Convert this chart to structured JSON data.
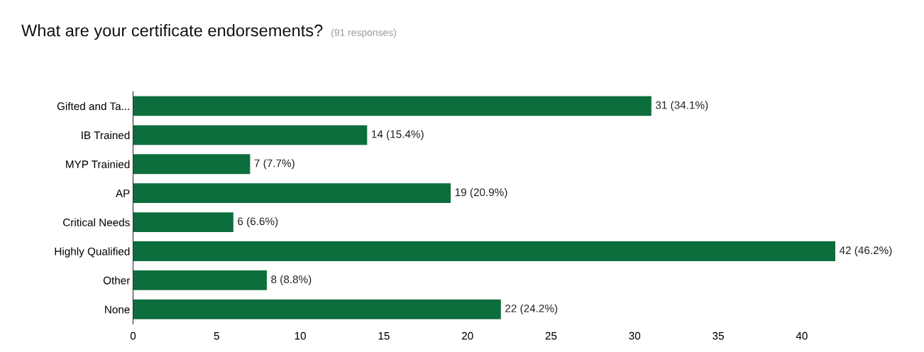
{
  "chart_data": {
    "type": "bar",
    "orientation": "horizontal",
    "title": "What are your certificate endorsements?",
    "subtitle": "(91 responses)",
    "categories": [
      "Gifted and Ta...",
      "IB Trained",
      "MYP Trainied",
      "AP",
      "Critical Needs",
      "Highly Qualified",
      "Other",
      "None"
    ],
    "values": [
      31,
      14,
      7,
      19,
      6,
      42,
      8,
      22
    ],
    "value_labels": [
      "31 (34.1%)",
      "14 (15.4%)",
      "7 (7.7%)",
      "19 (20.9%)",
      "6 (6.6%)",
      "42 (46.2%)",
      "8 (8.8%)",
      "22 (24.2%)"
    ],
    "color": "#0d6e3d",
    "xlim": [
      0,
      42
    ],
    "xticks": [
      0,
      5,
      10,
      15,
      20,
      25,
      30,
      35,
      40
    ],
    "grid": false,
    "legend": false
  }
}
